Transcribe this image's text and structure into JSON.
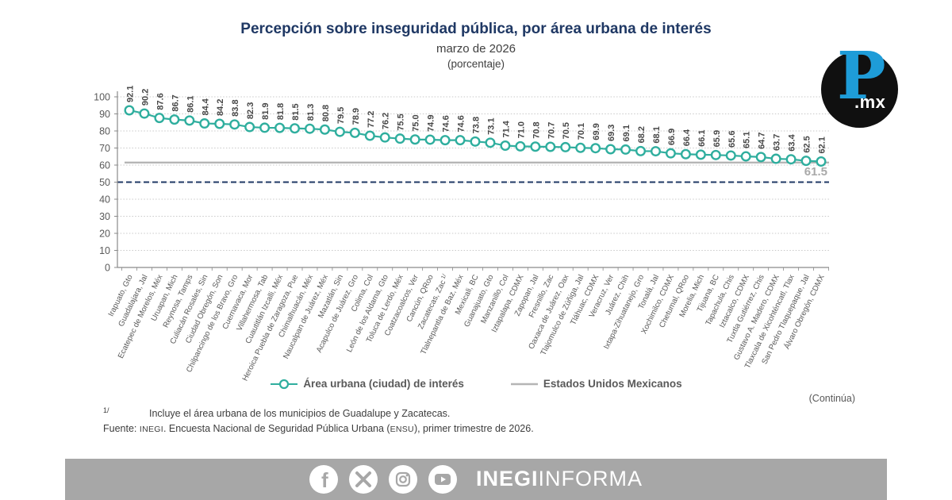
{
  "chart_data": {
    "type": "line",
    "title": "Percepción sobre inseguridad pública, por área urbana de interés",
    "subtitle": "marzo de 2026",
    "unit_label": "(porcentaje)",
    "categories": [
      "Irapuato, Gto",
      "Guadalajara, Jal",
      "Ecatepec de Morelos, Méx",
      "Uruapan, Mich",
      "Reynosa, Tamps",
      "Culiacán Rosales, Sin",
      "Ciudad Obregón, Son",
      "Chilpancingo de los Bravo, Gro",
      "Cuernavaca, Mor",
      "Villahermosa, Tab",
      "Cuautitlán Izcalli, Méx",
      "Heroica Puebla de Zaragoza, Pue",
      "Chimalhuacán, Méx",
      "Naucalpan de Juárez, Méx",
      "Mazatlán, Sin",
      "Acapulco de Juárez, Gro",
      "Colima, Col",
      "León de los Aldama, Gto",
      "Toluca de Lerdo, Méx",
      "Coatzacoalcos, Ver",
      "Cancún, QRoo",
      "Zacatecas, Zac",
      "Tlalnepantla de Baz, Méx",
      "Mexicali, BC",
      "Guanajuato, Gto",
      "Manzanillo, Col",
      "Iztapalapa, CDMX",
      "Zapopan, Jal",
      "Fresnillo, Zac",
      "Oaxaca de Juárez, Oax",
      "Tlajomulco de Zúñiga, Jal",
      "Tláhuac, CDMX",
      "Veracruz, Ver",
      "Juárez, Chih",
      "Ixtapa-Zihuatanejo, Gro",
      "Tonalá, Jal",
      "Xochimilco, CDMX",
      "Chetumal, QRoo",
      "Morelia, Mich",
      "Tijuana, BC",
      "Tapachula, Chis",
      "Iztacalco, CDMX",
      "Tuxtla Gutiérrez, Chis",
      "Gustavo A. Madero, CDMX",
      "Tlaxcala de Xicohténcatl, Tlax",
      "San Pedro Tlaquepaque, Jal",
      "Álvaro Obregón, CDMX"
    ],
    "values": [
      92.1,
      90.2,
      87.6,
      86.7,
      86.1,
      84.4,
      84.2,
      83.8,
      82.3,
      81.9,
      81.8,
      81.5,
      81.3,
      80.8,
      79.5,
      78.9,
      77.2,
      76.2,
      75.5,
      75.0,
      74.9,
      74.6,
      74.6,
      73.8,
      73.1,
      71.4,
      71.0,
      70.8,
      70.7,
      70.5,
      70.1,
      69.9,
      69.3,
      69.1,
      68.2,
      68.1,
      66.9,
      66.4,
      66.1,
      65.9,
      65.6,
      65.1,
      64.7,
      63.7,
      63.4,
      62.5,
      62.1
    ],
    "category_footnotes": {
      "21": "1/"
    },
    "ylim": [
      0,
      100
    ],
    "ytick_step": 10,
    "series_color": "#2FAE9E",
    "grid": "dotted-horizontal",
    "legend_position": "bottom",
    "reference_lines": [
      {
        "name": "Estados Unidos Mexicanos",
        "value": 61.5,
        "style": "solid",
        "color": "#b5b5b5",
        "width": 2.4,
        "label": "61.5"
      },
      {
        "name": "national-dashed-marker",
        "value": 50,
        "style": "dashed",
        "color": "#1F3864",
        "width": 2,
        "label": ""
      }
    ],
    "legend": [
      {
        "label": "Área urbana (ciudad) de interés",
        "type": "marker-line",
        "color": "#2FAE9E"
      },
      {
        "label": "Estados Unidos Mexicanos",
        "type": "line",
        "color": "#b5b5b5"
      }
    ],
    "colors": {
      "grid": "#c9c9c9",
      "axis": "#8a8a8a",
      "axis_text": "#595959",
      "value_label": "#474747",
      "ref_label": "#a9a9a9"
    }
  },
  "logo": {
    "letter": "P",
    "suffix": ".mx"
  },
  "annotations": {
    "continua": "(Continúa)"
  },
  "footnotes": {
    "marker": "1/",
    "note": "Incluye el área urbana de los municipios de Guadalupe y Zacatecas.",
    "fuente_parts": [
      "Fuente: ",
      "INEGI",
      ". Encuesta Nacional de Seguridad Pública Urbana (",
      "ENSU",
      "), primer trimestre de 2026."
    ]
  },
  "footer": {
    "bar_color": "#a7a7a7",
    "icons": [
      "facebook-icon",
      "x-icon",
      "instagram-icon",
      "youtube-icon"
    ],
    "brand_bold": "INEGI",
    "brand_regular": "INFORMA"
  }
}
